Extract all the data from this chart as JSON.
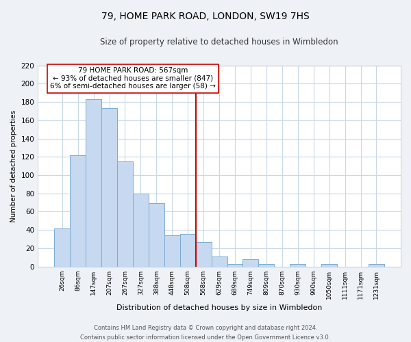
{
  "title": "79, HOME PARK ROAD, LONDON, SW19 7HS",
  "subtitle": "Size of property relative to detached houses in Wimbledon",
  "bar_labels": [
    "26sqm",
    "86sqm",
    "147sqm",
    "207sqm",
    "267sqm",
    "327sqm",
    "388sqm",
    "448sqm",
    "508sqm",
    "568sqm",
    "629sqm",
    "689sqm",
    "749sqm",
    "809sqm",
    "870sqm",
    "930sqm",
    "990sqm",
    "1050sqm",
    "1111sqm",
    "1171sqm",
    "1231sqm"
  ],
  "bar_values": [
    42,
    122,
    183,
    173,
    115,
    80,
    69,
    34,
    36,
    27,
    11,
    3,
    8,
    3,
    0,
    3,
    0,
    3,
    0,
    0,
    3
  ],
  "bar_color": "#c6d9f0",
  "bar_edge_color": "#7aadd4",
  "grid_color": "#c8d8e8",
  "vline_color": "#cc0000",
  "annotation_text": "79 HOME PARK ROAD: 567sqm\n← 93% of detached houses are smaller (847)\n6% of semi-detached houses are larger (58) →",
  "annotation_box_color": "#ffffff",
  "annotation_box_edge": "#cc0000",
  "ylabel": "Number of detached properties",
  "xlabel": "Distribution of detached houses by size in Wimbledon",
  "ylim": [
    0,
    220
  ],
  "yticks": [
    0,
    20,
    40,
    60,
    80,
    100,
    120,
    140,
    160,
    180,
    200,
    220
  ],
  "footer_line1": "Contains HM Land Registry data © Crown copyright and database right 2024.",
  "footer_line2": "Contains public sector information licensed under the Open Government Licence v3.0.",
  "bg_color": "#eef2f7",
  "plot_bg_color": "#ffffff"
}
